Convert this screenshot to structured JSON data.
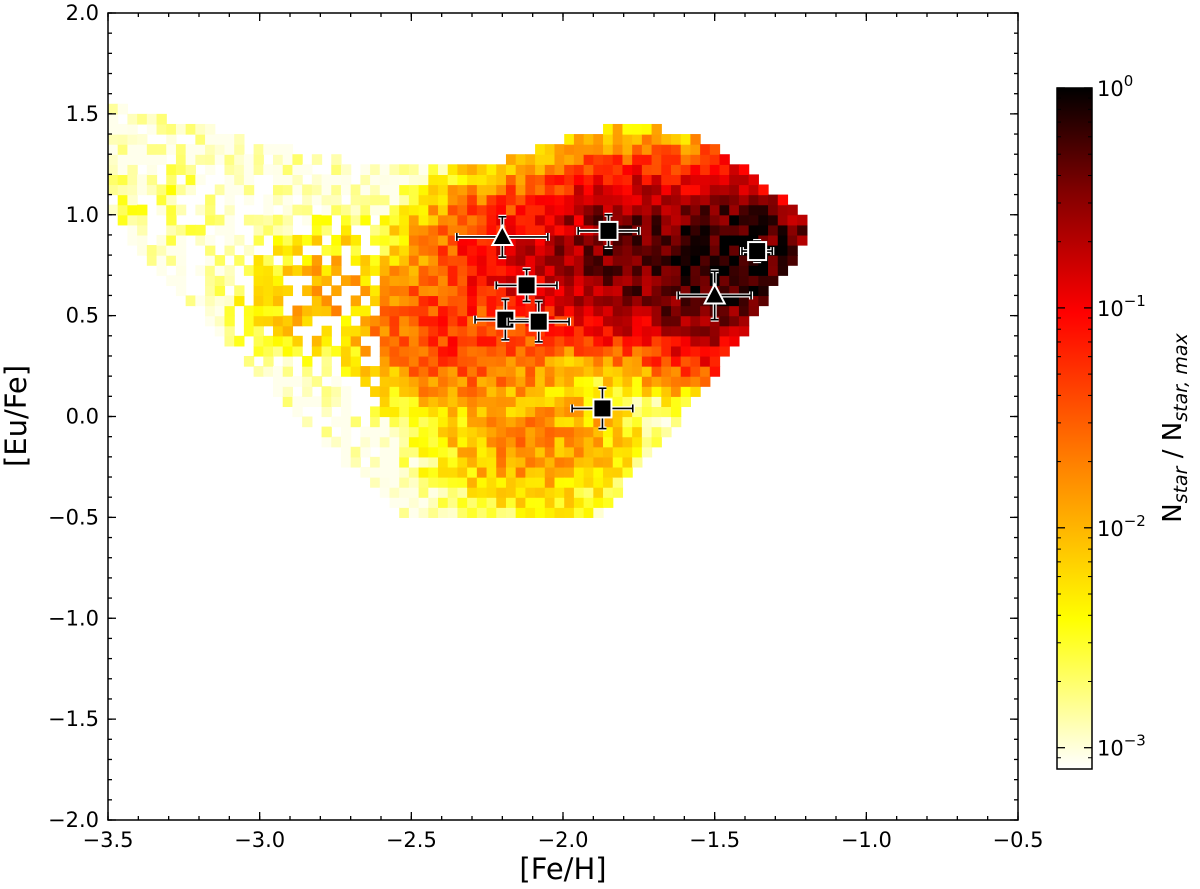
{
  "chart_data": {
    "type": "heatmap",
    "xlabel": "[Fe/H]",
    "ylabel": "[Eu/Fe]",
    "xlim": [
      -3.5,
      -0.5
    ],
    "ylim": [
      -2.0,
      2.0
    ],
    "x_ticks": [
      -3.5,
      -3.0,
      -2.5,
      -2.0,
      -1.5,
      -1.0,
      -0.5
    ],
    "x_tick_labels": [
      "−3.5",
      "−3.0",
      "−2.5",
      "−2.0",
      "−1.5",
      "−1.0",
      "−0.5"
    ],
    "y_ticks": [
      -2.0,
      -1.5,
      -1.0,
      -0.5,
      0.0,
      0.5,
      1.0,
      1.5,
      2.0
    ],
    "y_tick_labels": [
      "−2.0",
      "−1.5",
      "−1.0",
      "−0.5",
      "0.0",
      "0.5",
      "1.0",
      "1.5",
      "2.0"
    ],
    "grid": false,
    "bin_size": {
      "feh": 0.032,
      "eufe": 0.05
    },
    "density_regions": [
      {
        "feh": -1.47,
        "eufe": 0.76,
        "value": 0.9
      },
      {
        "feh": -1.75,
        "eufe": 0.8,
        "value": 0.5
      },
      {
        "feh": -2.05,
        "eufe": 0.75,
        "value": 0.15
      },
      {
        "feh": -2.3,
        "eufe": 0.45,
        "value": 0.05
      },
      {
        "feh": -2.75,
        "eufe": 0.6,
        "value": 0.01
      },
      {
        "feh": -3.35,
        "eufe": 1.05,
        "value": 0.002
      },
      {
        "feh": -2.1,
        "eufe": -0.1,
        "value": 0.015
      }
    ],
    "colorbar": {
      "label": "N",
      "label_sub1": "star",
      "label_mid": " / N",
      "label_sub2": "star, max",
      "scale": "log",
      "range": [
        0.0008,
        1.0
      ],
      "ticks": [
        0.001,
        0.01,
        0.1,
        1.0
      ],
      "tick_bases": [
        "10",
        "10",
        "10",
        "10"
      ],
      "tick_exps": [
        "−3",
        "−2",
        "−1",
        "0"
      ],
      "colormap": [
        "#ffffff",
        "#ffff00",
        "#ff8000",
        "#ff0000",
        "#800000",
        "#000000"
      ]
    },
    "observed_points": [
      {
        "marker": "square",
        "feh": -1.87,
        "eufe": 0.04,
        "xerr": 0.1,
        "yerr": 0.1
      },
      {
        "marker": "square",
        "feh": -2.19,
        "eufe": 0.48,
        "xerr": 0.1,
        "yerr": 0.1
      },
      {
        "marker": "square",
        "feh": -2.08,
        "eufe": 0.47,
        "xerr": 0.1,
        "yerr": 0.1
      },
      {
        "marker": "square",
        "feh": -2.12,
        "eufe": 0.65,
        "xerr": 0.1,
        "yerr": 0.08
      },
      {
        "marker": "square",
        "feh": -1.85,
        "eufe": 0.92,
        "xerr": 0.1,
        "yerr": 0.08
      },
      {
        "marker": "square",
        "feh": -1.36,
        "eufe": 0.82,
        "xerr": 0.05,
        "yerr": 0.05
      },
      {
        "marker": "triangle",
        "feh": -2.2,
        "eufe": 0.89,
        "xerr": 0.15,
        "yerr": 0.1
      },
      {
        "marker": "triangle",
        "feh": -1.5,
        "eufe": 0.6,
        "xerr": 0.12,
        "yerr": 0.12
      }
    ]
  }
}
